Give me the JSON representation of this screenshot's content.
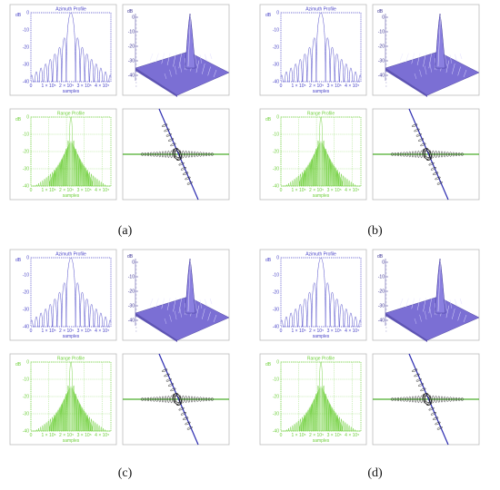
{
  "figures": [
    {
      "id": "a",
      "caption": "(a)"
    },
    {
      "id": "b",
      "caption": "(b)"
    },
    {
      "id": "c",
      "caption": "(c)"
    },
    {
      "id": "d",
      "caption": "(d)"
    }
  ],
  "colors": {
    "azimuth": "#4a45c8",
    "range": "#6ecf3a",
    "surface_fill": "#7b6fd4",
    "surface_edge": "#3c3494",
    "contour": "#1e1e1e",
    "panel_border": "#bbbbbb",
    "cut_line_blue": "#2b2bb0",
    "cut_line_green": "#4cae2c"
  },
  "chart_data": [
    {
      "type": "line",
      "title": "Azimuth Profile",
      "ylabel": "dB",
      "xlabel": "samples",
      "ylim": [
        -40,
        0
      ],
      "yticks": [
        "0",
        "-10",
        "-20",
        "-30",
        "-40"
      ],
      "xticks": [
        "0",
        "1 × 10⁵",
        "2 × 10⁵",
        "3 × 10⁵",
        "4 × 10⁵"
      ],
      "xlim": [
        0,
        450000
      ],
      "mainlobe_center": 225000,
      "sidelobe_peaks_db": [
        -29,
        -32,
        -34,
        -35.5,
        -37,
        -38,
        -39
      ]
    },
    {
      "type": "line",
      "title": "Range Profile",
      "ylabel": "dB",
      "xlabel": "samples",
      "ylim": [
        -40,
        0
      ],
      "yticks": [
        "0",
        "-10",
        "-20",
        "-30",
        "-40"
      ],
      "xticks": [
        "0",
        "1 × 10⁵",
        "2 × 10⁵",
        "3 × 10⁵",
        "4 × 10⁵"
      ],
      "xlim": [
        0,
        450000
      ],
      "mainlobe_center": 225000,
      "sidelobe_peaks_db": [
        -24,
        -27,
        -29,
        -31,
        -33,
        -35,
        -37,
        -39
      ]
    },
    {
      "type": "heatmap",
      "title": "",
      "zlabel": "dB",
      "zticks": [
        "0",
        "-10",
        "-20",
        "-30",
        "-40"
      ],
      "zlim": [
        -40,
        0
      ]
    }
  ]
}
